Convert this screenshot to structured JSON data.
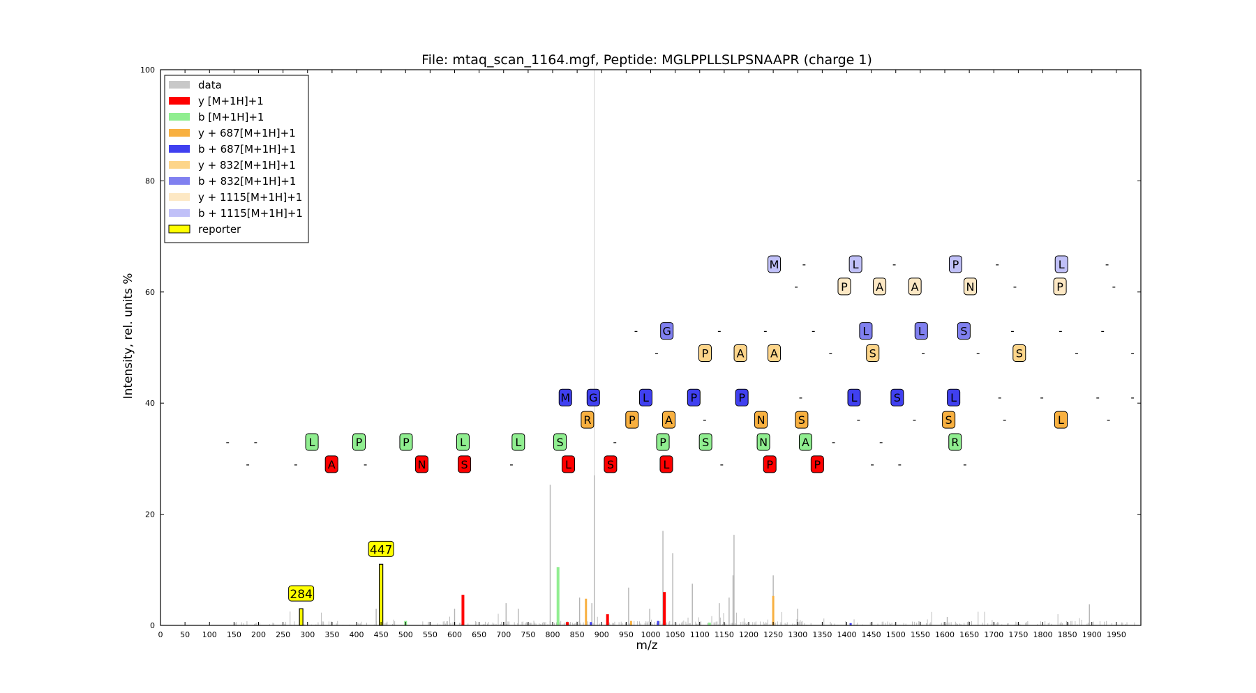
{
  "chart_data": {
    "type": "bar",
    "title": "File: mtaq_scan_1164.mgf, Peptide: MGLPPLLSLPSNAAPR (charge 1)",
    "xlabel": "m/z",
    "ylabel": "Intensity, rel. units %",
    "xlim": [
      0,
      2000
    ],
    "ylim": [
      0,
      100
    ],
    "x_ticks": [
      "0",
      "50",
      "100",
      "150",
      "200",
      "250",
      "300",
      "350",
      "400",
      "450",
      "500",
      "550",
      "600",
      "650",
      "700",
      "750",
      "800",
      "850",
      "900",
      "950",
      "1000",
      "1050",
      "1100",
      "1150",
      "1200",
      "1250",
      "1300",
      "1350",
      "1400",
      "1450",
      "1500",
      "1550",
      "1600",
      "1650",
      "1700",
      "1750",
      "1800",
      "1850",
      "1900",
      "1950"
    ],
    "y_ticks": [
      "0",
      "20",
      "40",
      "60",
      "80",
      "100"
    ],
    "grid": false,
    "legend_placement": "top-left",
    "colors": {
      "data": "#c8c8c8",
      "y": "#ff0000",
      "b": "#90ee90",
      "y687": "#f8b040",
      "b687": "#4040f0",
      "y832": "#fdd58a",
      "b832": "#8080f0",
      "y1115": "#fde8c4",
      "b1115": "#c0c0f8",
      "reporter": "#ffff00"
    },
    "legend": [
      {
        "label": "data",
        "key": "data",
        "outlined": false
      },
      {
        "label": "y [M+1H]+1",
        "key": "y",
        "outlined": false
      },
      {
        "label": "b [M+1H]+1",
        "key": "b",
        "outlined": false
      },
      {
        "label": "y + 687[M+1H]+1",
        "key": "y687",
        "outlined": false
      },
      {
        "label": "b + 687[M+1H]+1",
        "key": "b687",
        "outlined": false
      },
      {
        "label": "y + 832[M+1H]+1",
        "key": "y832",
        "outlined": false
      },
      {
        "label": "b + 832[M+1H]+1",
        "key": "b832",
        "outlined": false
      },
      {
        "label": "y + 1115[M+1H]+1",
        "key": "y1115",
        "outlined": false
      },
      {
        "label": "b + 1115[M+1H]+1",
        "key": "b1115",
        "outlined": false
      },
      {
        "label": "reporter",
        "key": "reporter",
        "outlined": true
      }
    ],
    "peaks": [
      {
        "series": "data",
        "x": 795,
        "y": 25.3
      },
      {
        "series": "data",
        "x": 885,
        "y": 27
      },
      {
        "series": "data",
        "x": 880,
        "y": 4
      },
      {
        "series": "data",
        "x": 1025,
        "y": 17
      },
      {
        "series": "data",
        "x": 1045,
        "y": 13
      },
      {
        "series": "data",
        "x": 1170,
        "y": 16.3
      },
      {
        "series": "data",
        "x": 1168,
        "y": 9
      },
      {
        "series": "data",
        "x": 1250,
        "y": 9
      },
      {
        "series": "data",
        "x": 1085,
        "y": 7.5
      },
      {
        "series": "data",
        "x": 955,
        "y": 6.8
      },
      {
        "series": "data",
        "x": 1895,
        "y": 3.8
      },
      {
        "series": "data",
        "x": 440,
        "y": 3
      },
      {
        "series": "data",
        "x": 600,
        "y": 3
      },
      {
        "series": "data",
        "x": 705,
        "y": 4
      },
      {
        "series": "data",
        "x": 730,
        "y": 3
      },
      {
        "series": "data",
        "x": 855,
        "y": 5
      },
      {
        "series": "data",
        "x": 998,
        "y": 3
      },
      {
        "series": "data",
        "x": 1140,
        "y": 4
      },
      {
        "series": "data",
        "x": 1160,
        "y": 5
      },
      {
        "series": "data",
        "x": 1300,
        "y": 3
      },
      {
        "series": "data",
        "x": 1605,
        "y": 1.5
      },
      {
        "series": "y",
        "x": 617,
        "y": 5.5
      },
      {
        "series": "y",
        "x": 1028,
        "y": 6
      },
      {
        "series": "y",
        "x": 912,
        "y": 2
      },
      {
        "series": "y",
        "x": 830,
        "y": 0.6
      },
      {
        "series": "b",
        "x": 811,
        "y": 10.5
      },
      {
        "series": "b",
        "x": 500,
        "y": 0.8
      },
      {
        "series": "b",
        "x": 1120,
        "y": 0.5
      },
      {
        "series": "y687",
        "x": 868,
        "y": 4.8
      },
      {
        "series": "y687",
        "x": 1250,
        "y": 5.3
      },
      {
        "series": "y687",
        "x": 960,
        "y": 0.8
      },
      {
        "series": "b687",
        "x": 878,
        "y": 0.6
      },
      {
        "series": "b687",
        "x": 1015,
        "y": 0.8
      },
      {
        "series": "b687",
        "x": 1408,
        "y": 0.4
      },
      {
        "series": "reporter",
        "x": 287,
        "y": 3,
        "label": "284"
      },
      {
        "series": "reporter",
        "x": 450,
        "y": 11,
        "label": "447"
      }
    ],
    "annotations": [
      {
        "series": "b1115",
        "y": 65,
        "x": [
          1252,
          1313,
          1418,
          1497,
          1622,
          1707,
          1838,
          1931
        ],
        "labels": [
          "M",
          "-",
          "L",
          "-",
          "P",
          "-",
          "L",
          "-"
        ]
      },
      {
        "series": "y1115",
        "y": 61,
        "x": [
          1297,
          1395,
          1467,
          1539,
          1652,
          1743,
          1835,
          1945
        ],
        "labels": [
          "-",
          "P",
          "A",
          "A",
          "N",
          "-",
          "P",
          "-"
        ]
      },
      {
        "series": "b832",
        "y": 53,
        "x": [
          970,
          1033,
          1140,
          1234,
          1332,
          1439,
          1552,
          1639,
          1738,
          1836,
          1922
        ],
        "labels": [
          "-",
          "G",
          "-",
          "-",
          "-",
          "L",
          "L",
          "S",
          "-",
          "-",
          "-"
        ]
      },
      {
        "series": "y832",
        "y": 49,
        "x": [
          1012,
          1111,
          1183,
          1252,
          1367,
          1453,
          1556,
          1668,
          1752,
          1869,
          1983
        ],
        "labels": [
          "-",
          "P",
          "A",
          "A",
          "-",
          "S",
          "-",
          "-",
          "S",
          "-",
          "-"
        ]
      },
      {
        "series": "b687",
        "y": 41,
        "x": [
          826,
          883,
          990,
          1088,
          1186,
          1306,
          1415,
          1503,
          1618,
          1712,
          1798,
          1912,
          1983
        ],
        "labels": [
          "M",
          "G",
          "L",
          "P",
          "P",
          "-",
          "L",
          "S",
          "L",
          "-",
          "-",
          "-",
          "-"
        ]
      },
      {
        "series": "y687",
        "y": 37,
        "x": [
          871,
          962,
          1037,
          1110,
          1225,
          1308,
          1424,
          1538,
          1608,
          1722,
          1837,
          1934
        ],
        "labels": [
          "R",
          "P",
          "A",
          "-",
          "N",
          "S",
          "-",
          "-",
          "S",
          "-",
          "L",
          "-"
        ]
      },
      {
        "series": "b",
        "y": 33,
        "x": [
          137,
          194,
          309,
          405,
          501,
          617,
          730,
          815,
          927,
          1025,
          1112,
          1230,
          1316,
          1373,
          1470,
          1621
        ],
        "labels": [
          "-",
          "-",
          "L",
          "P",
          "P",
          "L",
          "L",
          "S",
          "-",
          "P",
          "S",
          "N",
          "A",
          "-",
          "-",
          "R"
        ]
      },
      {
        "series": "y",
        "y": 29,
        "x": [
          178,
          276,
          349,
          418,
          533,
          620,
          716,
          832,
          918,
          1032,
          1145,
          1243,
          1340,
          1452,
          1508,
          1641
        ],
        "labels": [
          "-",
          "-",
          "A",
          "-",
          "N",
          "S",
          "-",
          "L",
          "S",
          "L",
          "-",
          "P",
          "P",
          "-",
          "-",
          "-"
        ]
      }
    ]
  }
}
